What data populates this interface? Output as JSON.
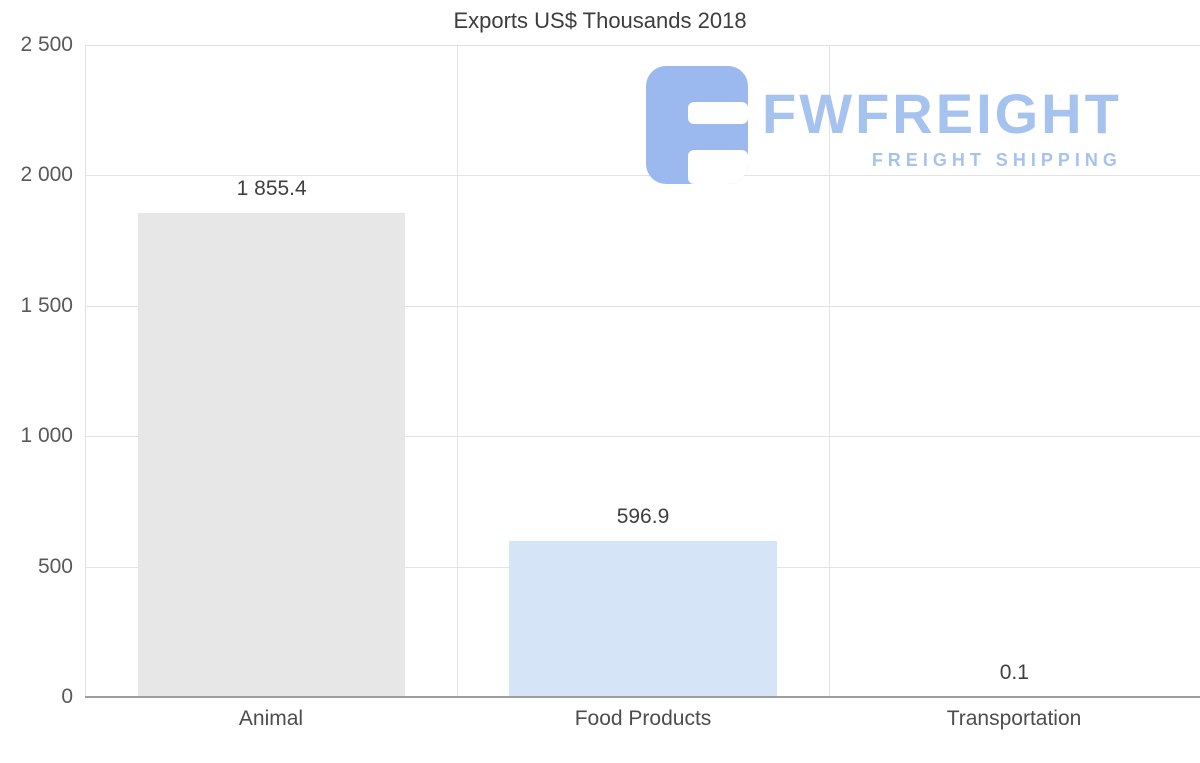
{
  "chart_data": {
    "type": "bar",
    "title": "Exports US$ Thousands 2018",
    "categories": [
      "Animal",
      "Food Products",
      "Transportation"
    ],
    "values": [
      1855.4,
      596.9,
      0.1
    ],
    "value_labels": [
      "1 855.4",
      "596.9",
      "0.1"
    ],
    "xlabel": "",
    "ylabel": "",
    "ylim": [
      0,
      2500
    ],
    "ytick_values_desc": [
      2500,
      2000,
      1500,
      1000,
      500,
      0
    ],
    "ytick_labels_desc": [
      "2 500",
      "2 000",
      "1 500",
      "1 000",
      "500",
      "0"
    ],
    "grid": true,
    "legend": false,
    "bar_colors": [
      "#e7e7e7",
      "#d5e5f7",
      "#d5e5f7"
    ]
  },
  "watermark": {
    "brand": "FWFREIGHT",
    "tagline": "FREIGHT SHIPPING",
    "text_color": "#a6c3f0",
    "icon_color": "#9bb9ee",
    "icon_name": "fwfreight-f-logo"
  }
}
